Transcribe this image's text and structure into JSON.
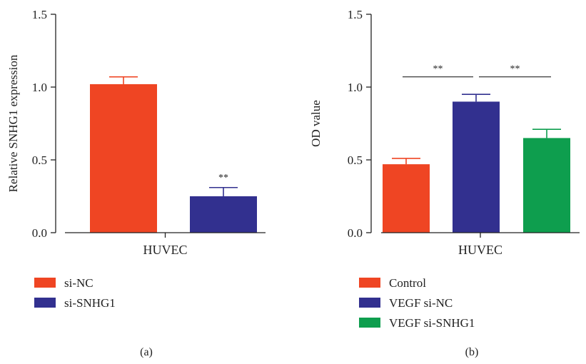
{
  "chart_data": [
    {
      "type": "bar",
      "panel_label": "(a)",
      "ylabel": "Relative SNHG1 expression",
      "xlabel": "HUVEC",
      "ylim": [
        0,
        1.5
      ],
      "yticks": [
        "0.0",
        "0.5",
        "1.0",
        "1.5"
      ],
      "grid": false,
      "legend_position": "bottom-left",
      "series": [
        {
          "name": "si-NC",
          "value": 1.02,
          "error": 0.05,
          "color": "#EF4523"
        },
        {
          "name": "si-SNHG1",
          "value": 0.25,
          "error": 0.06,
          "color": "#32308F",
          "annotation": "**"
        }
      ],
      "significance_brackets": []
    },
    {
      "type": "bar",
      "panel_label": "(b)",
      "ylabel": "OD value",
      "xlabel": "HUVEC",
      "ylim": [
        0,
        1.5
      ],
      "yticks": [
        "0.0",
        "0.5",
        "1.0",
        "1.5"
      ],
      "grid": false,
      "legend_position": "bottom-left",
      "series": [
        {
          "name": "Control",
          "value": 0.47,
          "error": 0.04,
          "color": "#EF4523"
        },
        {
          "name": "VEGF si-NC",
          "value": 0.9,
          "error": 0.05,
          "color": "#32308F"
        },
        {
          "name": "VEGF si-SNHG1",
          "value": 0.65,
          "error": 0.06,
          "color": "#0E9E4E"
        }
      ],
      "significance_brackets": [
        {
          "from": 0,
          "to": 1,
          "y": 1.07,
          "label": "**"
        },
        {
          "from": 1,
          "to": 2,
          "y": 1.07,
          "label": "**"
        }
      ]
    }
  ]
}
